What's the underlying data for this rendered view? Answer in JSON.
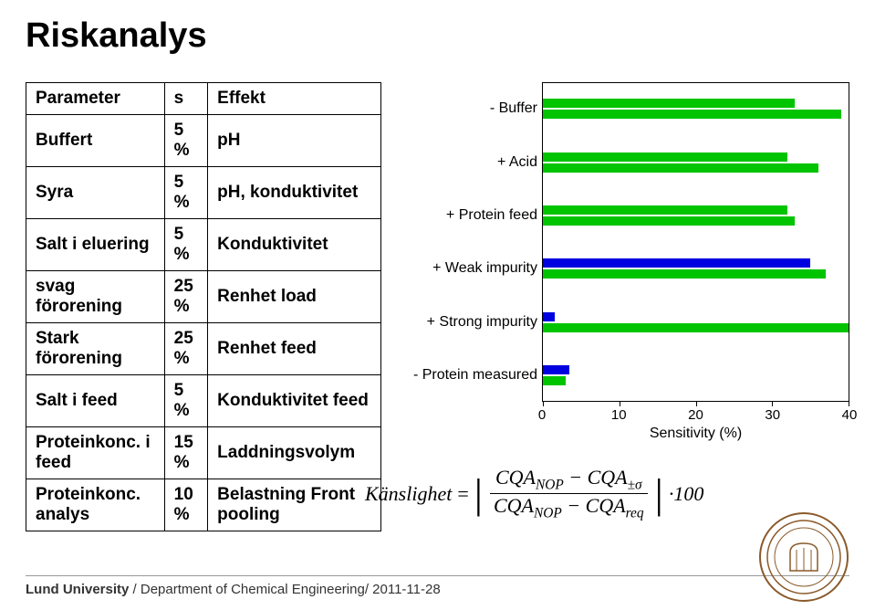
{
  "title": "Riskanalys",
  "table": {
    "headers": [
      "Parameter",
      "s",
      "Effekt"
    ],
    "rows": [
      [
        "Buffert",
        "5 %",
        "pH"
      ],
      [
        "Syra",
        "5 %",
        "pH, konduktivitet"
      ],
      [
        "Salt i eluering",
        "5 %",
        "Konduktivitet"
      ],
      [
        "svag förorening",
        "25 %",
        "Renhet load"
      ],
      [
        "Stark förorening",
        "25 %",
        "Renhet feed"
      ],
      [
        "Salt i feed",
        "5 %",
        "Konduktivitet feed"
      ],
      [
        "Proteinkonc. i feed",
        "15 %",
        "Laddningsvolym"
      ],
      [
        "Proteinkonc. analys",
        "10 %",
        "Belastning Front pooling"
      ]
    ]
  },
  "chart": {
    "type": "bar",
    "xlabel": "Sensitivity (%)",
    "xlim": [
      0,
      40
    ],
    "xticks": [
      0,
      10,
      20,
      30,
      40
    ],
    "bar_colors": {
      "green": "#00c400",
      "blue": "#0000e0"
    },
    "series": [
      {
        "label": "- Buffer",
        "bars": [
          {
            "value": 33,
            "color": "green"
          },
          {
            "value": 39,
            "color": "green"
          }
        ]
      },
      {
        "label": "+ Acid",
        "bars": [
          {
            "value": 32,
            "color": "green"
          },
          {
            "value": 36,
            "color": "green"
          }
        ]
      },
      {
        "label": "+ Protein feed",
        "bars": [
          {
            "value": 32,
            "color": "green"
          },
          {
            "value": 33,
            "color": "green"
          }
        ]
      },
      {
        "label": "+ Weak impurity",
        "bars": [
          {
            "value": 35,
            "color": "blue"
          },
          {
            "value": 37,
            "color": "green"
          }
        ]
      },
      {
        "label": "+ Strong impurity",
        "bars": [
          {
            "value": 1.5,
            "color": "blue"
          },
          {
            "value": 40,
            "color": "green"
          }
        ]
      },
      {
        "label": "- Protein measured",
        "bars": [
          {
            "value": 3.5,
            "color": "blue"
          },
          {
            "value": 3,
            "color": "green"
          }
        ]
      }
    ]
  },
  "formula": {
    "lhs": "Känslighet",
    "num_left": "CQA",
    "num_left_sub": "NOP",
    "num_right": "CQA",
    "num_right_sub": "±σ",
    "den_left": "CQA",
    "den_left_sub": "NOP",
    "den_right": "CQA",
    "den_right_sub": "req",
    "times": "·100"
  },
  "footer": {
    "uni": "Lund University",
    "rest": " / Department of Chemical Engineering/ 2011-11-28"
  }
}
